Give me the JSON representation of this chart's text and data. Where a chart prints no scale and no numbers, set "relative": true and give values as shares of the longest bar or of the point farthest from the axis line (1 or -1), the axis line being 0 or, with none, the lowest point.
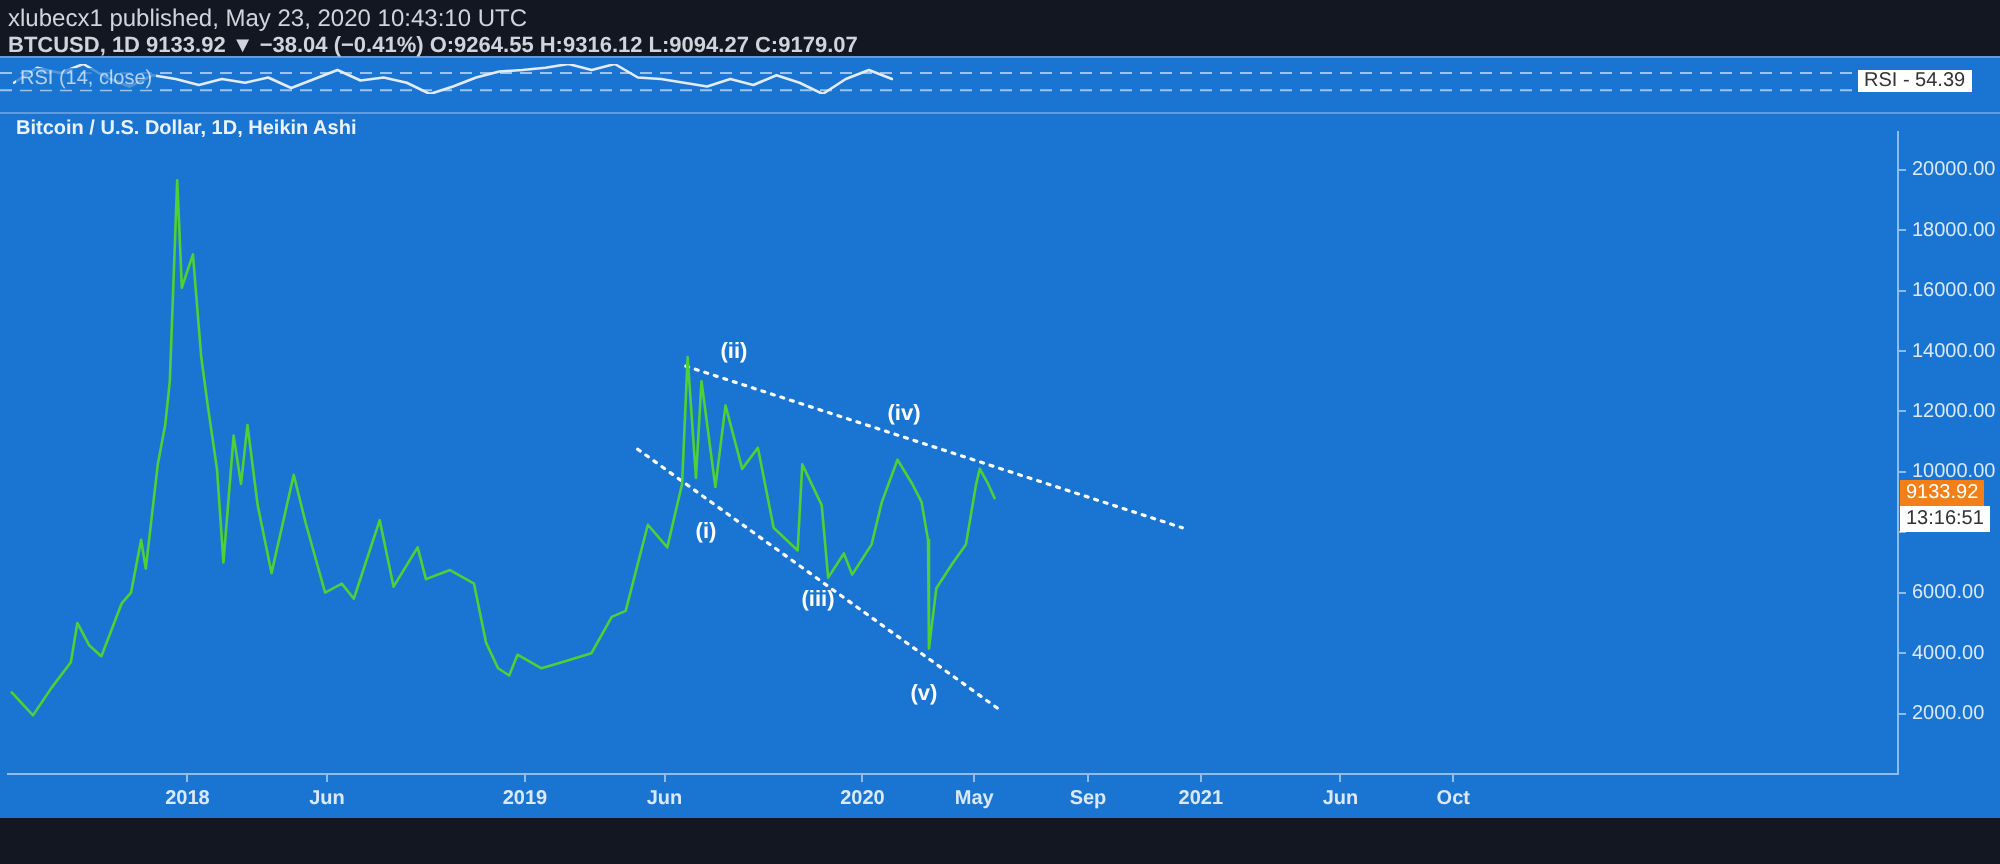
{
  "chart_data": [
    {
      "type": "line",
      "relative": true,
      "categories": [
        null,
        null,
        null,
        null,
        null,
        null,
        null,
        null,
        null,
        null,
        null,
        null,
        null,
        null,
        null,
        null,
        null,
        null,
        null,
        null,
        null,
        null,
        null,
        null,
        null,
        null,
        null,
        null,
        null,
        null,
        null,
        null,
        null,
        null,
        null,
        null,
        null,
        null,
        null
      ],
      "series": [
        {
          "color": "#e3ecf7",
          "values": [
            0.375,
            0.875,
            0.7,
            1,
            0.55,
            0.25,
            0.625,
            0.5,
            0.3,
            0.5,
            0.375,
            0.55,
            0.2,
            0.5,
            0.8,
            0.45,
            0.55,
            0.375,
            0,
            0.25,
            0.55,
            0.75,
            0.8,
            0.875,
            1,
            0.8,
            1,
            0.55,
            0.5,
            0.375,
            0.25,
            0.5,
            0.3,
            0.625,
            0.375,
            0,
            0.5,
            0.8,
            0.5
          ]
        }
      ],
      "legend": false,
      "ref_lines": [
        {
          "axis": "y",
          "value": 0.7,
          "color": "#9cc4ee",
          "line_style": "dashed"
        },
        {
          "axis": "y",
          "value": 0.125,
          "color": "#9cc4ee",
          "line_style": "dashed"
        }
      ],
      "annotations": [
        "RSI (14, close)",
        "RSI - 54.39"
      ]
    },
    {
      "type": "line",
      "title": "Bitcoin / U.S. Dollar, 1D, Heikin Ashi",
      "x": [
        "2017-06-25",
        "2017-07-18",
        "2017-08-07",
        "2017-08-28",
        "2017-09-04",
        "2017-09-17",
        "2017-09-30",
        "2017-10-22",
        "2017-11-01",
        "2017-11-12",
        "2017-11-17",
        "2017-11-30",
        "2017-12-08",
        "2017-12-13",
        "2017-12-21",
        "2017-12-26",
        "2018-01-07",
        "2018-01-16",
        "2018-01-23",
        "2018-02-02",
        "2018-02-09",
        "2018-02-20",
        "2018-02-28",
        "2018-03-07",
        "2018-03-18",
        "2018-04-02",
        "2018-04-26",
        "2018-05-09",
        "2018-05-30",
        "2018-06-17",
        "2018-06-30",
        "2018-07-28",
        "2018-08-12",
        "2018-09-07",
        "2018-09-16",
        "2018-10-12",
        "2018-11-07",
        "2018-11-20",
        "2018-12-03",
        "2018-12-15",
        "2018-12-24",
        "2019-01-19",
        "2019-02-10",
        "2019-03-14",
        "2019-04-05",
        "2019-04-20",
        "2019-05-14",
        "2019-06-04",
        "2019-06-20",
        "2019-06-26",
        "2019-07-05",
        "2019-07-11",
        "2019-07-26",
        "2019-08-06",
        "2019-08-24",
        "2019-09-10",
        "2019-09-27",
        "2019-10-23",
        "2019-10-28",
        "2019-11-18",
        "2019-11-25",
        "2019-12-12",
        "2019-12-21",
        "2020-01-11",
        "2020-01-22",
        "2020-02-08",
        "2020-02-24",
        "2020-03-05",
        "2020-03-12",
        "2020-03-13",
        "2020-03-21",
        "2020-04-07",
        "2020-04-22",
        "2020-05-03",
        "2020-05-07",
        "2020-05-16",
        "2020-05-23"
      ],
      "series": [
        {
          "color": "#4cd137",
          "values": [
            2700,
            1940,
            2850,
            3700,
            5000,
            4250,
            3900,
            5650,
            6000,
            7750,
            6800,
            10250,
            11550,
            13000,
            19650,
            16100,
            17200,
            13800,
            12200,
            10100,
            7000,
            11200,
            9600,
            11550,
            8900,
            6650,
            9900,
            8300,
            6000,
            6300,
            5800,
            8400,
            6200,
            7500,
            6450,
            6750,
            6300,
            4350,
            3500,
            3260,
            3950,
            3500,
            3700,
            4000,
            5200,
            5400,
            8250,
            7500,
            9600,
            13800,
            9800,
            13000,
            9500,
            12200,
            10100,
            10800,
            8150,
            7400,
            10250,
            8900,
            6500,
            7300,
            6600,
            7600,
            9000,
            10400,
            9600,
            9000,
            7750,
            4150,
            6150,
            6950,
            7600,
            9600,
            10100,
            9600,
            9130
          ]
        },
        {
          "type": "line",
          "x": [
            "2019-06-24",
            "2020-12-12"
          ],
          "values": [
            13500,
            8150
          ],
          "color": "#ffffff",
          "line_style": "dotted"
        },
        {
          "type": "line",
          "x": [
            "2019-05-03",
            "2020-05-31"
          ],
          "values": [
            10750,
            2070
          ],
          "color": "#ffffff",
          "line_style": "dotted"
        }
      ],
      "xlim": [
        "2017-06-21",
        "2023-01-25"
      ],
      "xticks": [
        {
          "value": "2018-01-01",
          "label": "2018"
        },
        {
          "value": "2018-06-01",
          "label": "Jun"
        },
        {
          "value": "2019-01-01",
          "label": "2019"
        },
        {
          "value": "2019-06-01",
          "label": "Jun"
        },
        {
          "value": "2020-01-01",
          "label": "2020"
        },
        {
          "value": "2020-05-01",
          "label": "May"
        },
        {
          "value": "2020-09-01",
          "label": "Sep"
        },
        {
          "value": "2021-01-01",
          "label": "2021"
        },
        {
          "value": "2021-06-01",
          "label": "Jun"
        },
        {
          "value": "2021-10-01",
          "label": "Oct"
        }
      ],
      "ylim": [
        0,
        21250
      ],
      "yticks": [
        {
          "value": 2000,
          "label": "2000.00"
        },
        {
          "value": 4000,
          "label": "4000.00"
        },
        {
          "value": 6000,
          "label": "6000.00"
        },
        {
          "value": 8000,
          "label": null
        },
        {
          "value": 10000,
          "label": "10000.00"
        },
        {
          "value": 12000,
          "label": "12000.00"
        },
        {
          "value": 14000,
          "label": "14000.00"
        },
        {
          "value": 16000,
          "label": "16000.00"
        },
        {
          "value": 18000,
          "label": "18000.00"
        },
        {
          "value": 20000,
          "label": "20000.00"
        }
      ],
      "grid": false,
      "legend": false,
      "annotations": [
        "xlubecx1 published, May 23, 2020 10:43:10 UTC",
        "BTCUSD, 1D 9133.92 ▼ −38.04 (−0.41%) O:9264.55 H:9316.12 L:9094.27 C:9179.07",
        "9133.92",
        "13:16:51",
        "(i)",
        "(ii)",
        "(iii)",
        "(iv)",
        "(v)"
      ]
    }
  ]
}
